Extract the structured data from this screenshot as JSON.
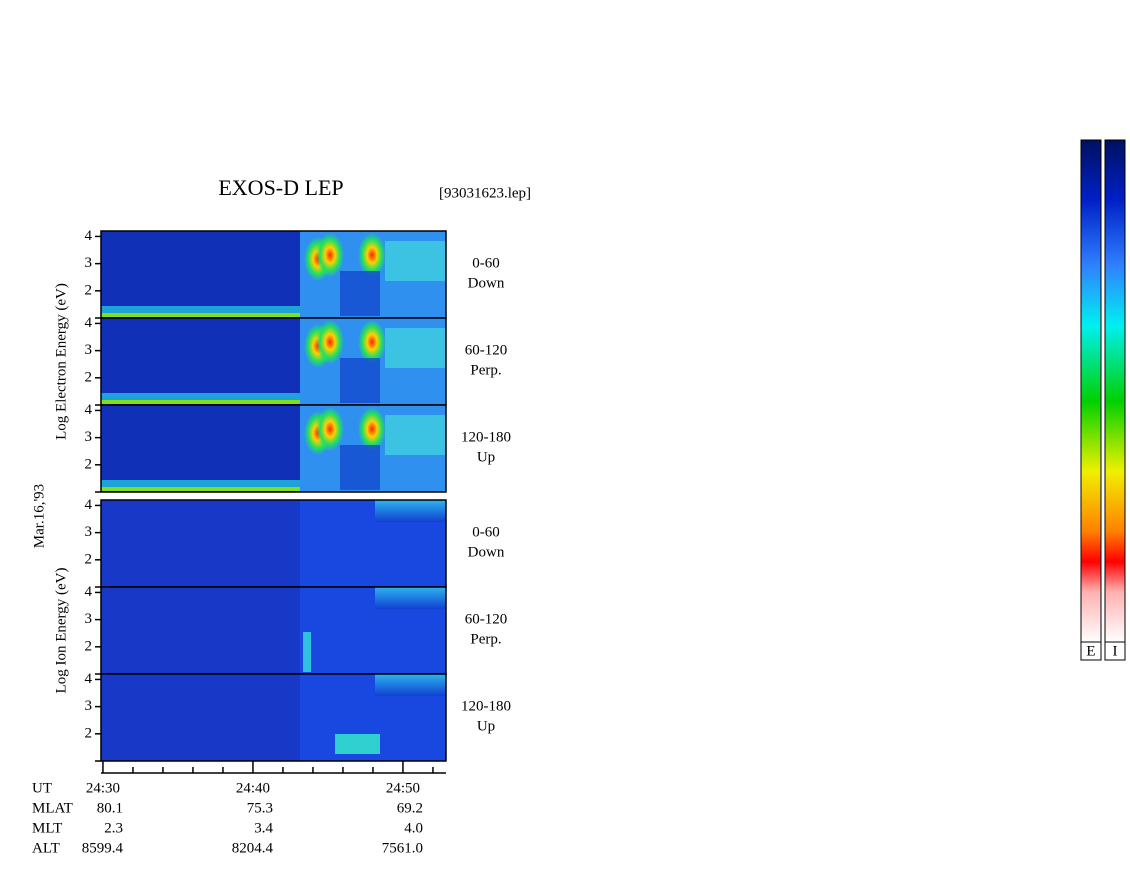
{
  "chart_data": {
    "type": "spectrogram",
    "title": "EXOS-D LEP",
    "file": "[93031623.lep]",
    "date": "Mar.16,'93",
    "groups": [
      {
        "ylabel": "Log Electron Energy (eV)",
        "panels": [
          {
            "pitch": "0-60",
            "direction": "Down"
          },
          {
            "pitch": "60-120",
            "direction": "Perp."
          },
          {
            "pitch": "120-180",
            "direction": "Up"
          }
        ]
      },
      {
        "ylabel": "Log Ion Energy (eV)",
        "panels": [
          {
            "pitch": "0-60",
            "direction": "Down"
          },
          {
            "pitch": "60-120",
            "direction": "Perp."
          },
          {
            "pitch": "120-180",
            "direction": "Up"
          }
        ]
      }
    ],
    "ylim": [
      1,
      4.2
    ],
    "yticks": [
      2,
      3,
      4
    ],
    "xlim": [
      29.87,
      52.87
    ],
    "xticks": [
      {
        "value": 30,
        "label": "24:30"
      },
      {
        "value": 40,
        "label": "24:40"
      },
      {
        "value": 50,
        "label": "24:50"
      }
    ],
    "minor_xticks": [
      32,
      34,
      36,
      38,
      42,
      44,
      46,
      48,
      52
    ],
    "ephemeris": [
      {
        "name": "MLAT",
        "values": [
          "80.1",
          "75.3",
          "69.2"
        ]
      },
      {
        "name": "MLT",
        "values": [
          "2.3",
          "3.4",
          "4.0"
        ]
      },
      {
        "name": "ALT",
        "values": [
          "8599.4",
          "8204.4",
          "7561.0"
        ]
      }
    ],
    "time_label": "UT",
    "colorbars": [
      "E",
      "I"
    ]
  }
}
